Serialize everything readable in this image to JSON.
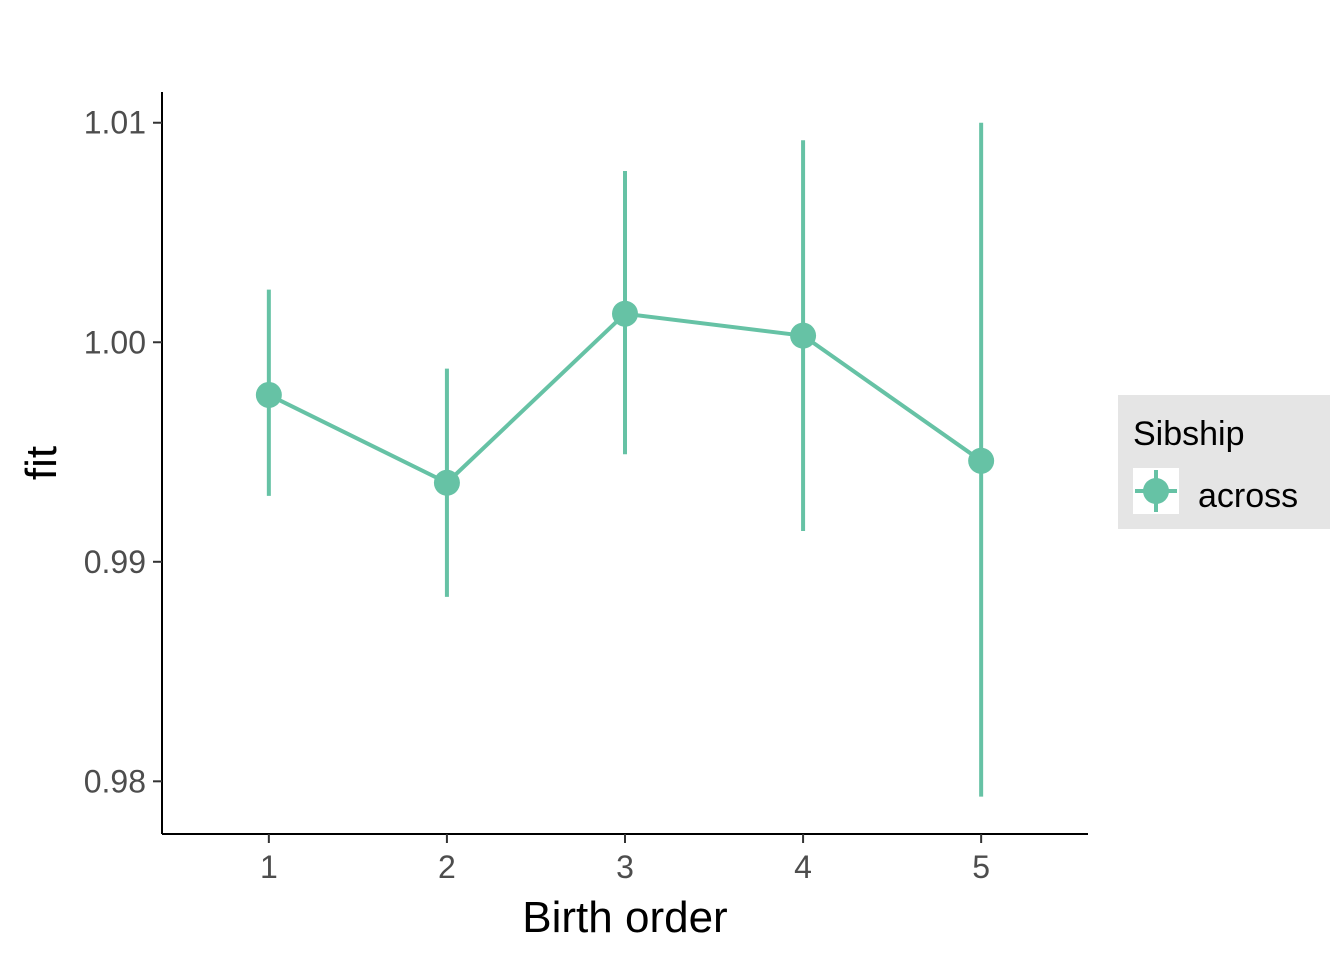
{
  "chart_data": {
    "type": "line",
    "xlabel": "Birth order",
    "ylabel": "fit",
    "x_ticks": [
      "1",
      "2",
      "3",
      "4",
      "5"
    ],
    "y_ticks": [
      "0.98",
      "0.99",
      "1.00",
      "1.01"
    ],
    "xlim": [
      0.4,
      5.6
    ],
    "ylim": [
      0.9776,
      1.0114
    ],
    "grid": false,
    "legend": {
      "title": "Sibship",
      "position": "right",
      "entries": [
        "across"
      ]
    },
    "series": [
      {
        "name": "across",
        "color": "#66c2a5",
        "points": [
          {
            "x": 1,
            "y": 0.9976,
            "lower": 0.993,
            "upper": 1.0024
          },
          {
            "x": 2,
            "y": 0.9936,
            "lower": 0.9884,
            "upper": 0.9988
          },
          {
            "x": 3,
            "y": 1.0013,
            "lower": 0.9949,
            "upper": 1.0078
          },
          {
            "x": 4,
            "y": 1.0003,
            "lower": 0.9914,
            "upper": 1.0092
          },
          {
            "x": 5,
            "y": 0.9946,
            "lower": 0.9793,
            "upper": 1.01
          }
        ]
      }
    ]
  }
}
